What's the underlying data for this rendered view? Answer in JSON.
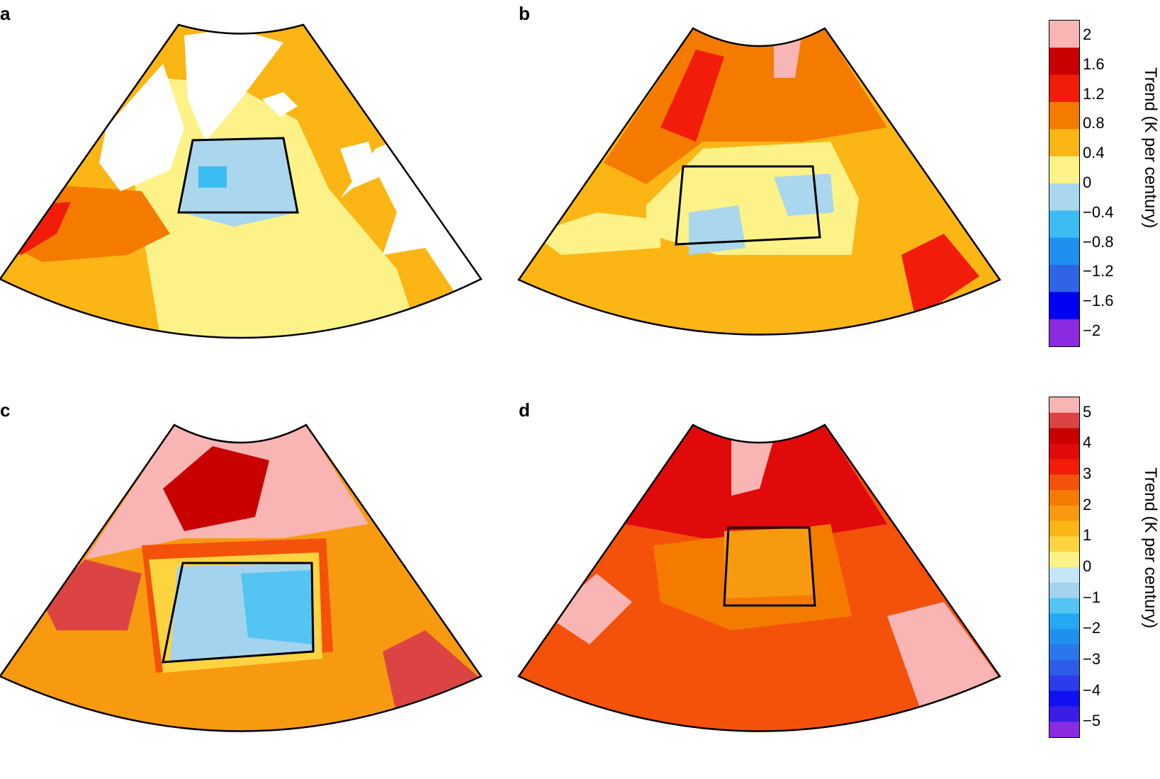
{
  "panels": [
    {
      "id": "a",
      "label": "a"
    },
    {
      "id": "b",
      "label": "b"
    },
    {
      "id": "c",
      "label": "c"
    },
    {
      "id": "d",
      "label": "d"
    }
  ],
  "colorbar_top": {
    "title": "Trend (K per century)",
    "ticks": [
      "2",
      "1.6",
      "1.2",
      "0.8",
      "0.4",
      "0",
      "−0.4",
      "−0.8",
      "−1.2",
      "−1.6",
      "−2"
    ],
    "colors": [
      "#f9b4b4",
      "#c80000",
      "#f21c0a",
      "#f47b00",
      "#fbb515",
      "#fcf287",
      "#aad6ee",
      "#3cbcf2",
      "#1f8ff0",
      "#2f64e6",
      "#0000f2",
      "#8a2be2"
    ]
  },
  "colorbar_bottom": {
    "title": "Trend (K per century)",
    "ticks": [
      "5",
      "4",
      "3",
      "2",
      "1",
      "0",
      "−1",
      "−2",
      "−3",
      "−4",
      "−5"
    ],
    "colors": [
      "#f9b4b4",
      "#dc4444",
      "#c80000",
      "#e00a0a",
      "#f21c0a",
      "#f4520a",
      "#f47b00",
      "#f89a10",
      "#fbb515",
      "#fdd340",
      "#fcf287",
      "#c4e6f6",
      "#a3d3ee",
      "#54c4f2",
      "#24a8f2",
      "#1f8ff0",
      "#2a76ea",
      "#2f5ce6",
      "#2a3cec",
      "#1010f2",
      "#3a1ee6",
      "#8a2be2"
    ]
  },
  "region_colors": {
    "a": {
      "base": "#fbb515",
      "north": "#fbb515",
      "cold": "#aad6ee",
      "cold2": "#3cbcf2",
      "warm": "#f47b00",
      "hot": "#f21c0a",
      "pale": "#fcf287"
    },
    "b": {
      "base": "#fbb515",
      "north": "#f47b00",
      "cold": "#aad6ee",
      "warm": "#f47b00",
      "hot": "#f21c0a",
      "pale": "#fcf287",
      "pink": "#f9b4b4"
    },
    "c": {
      "base": "#f89a10",
      "north": "#f9b4b4",
      "cold": "#54c4f2",
      "cold2": "#a3d3ee",
      "warm": "#f4520a",
      "hot": "#dc4444",
      "pale": "#fdd340",
      "deep": "#c80000"
    },
    "d": {
      "base": "#f4520a",
      "north": "#e00a0a",
      "warm": "#f47b00",
      "inner": "#f89a10",
      "hot": "#e00a0a",
      "pink": "#f9b4b4"
    }
  }
}
